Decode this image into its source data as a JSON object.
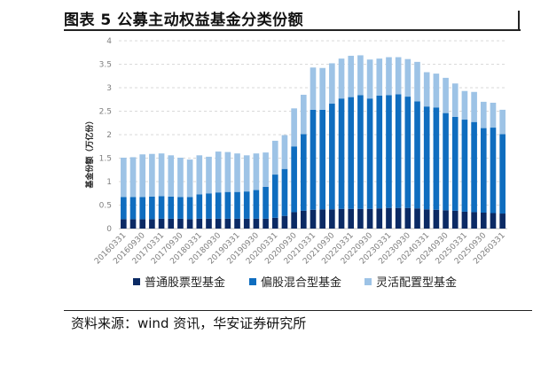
{
  "title": "图表 5 公募主动权益基金分类份额",
  "source": "资料来源：wind 资讯，华安证券研究所",
  "colors": {
    "s1": "#0b2a64",
    "s2": "#0f6dbf",
    "s3": "#9dc3e6",
    "grid": "#d9d9d9"
  },
  "chart_data": {
    "type": "bar",
    "stacked": true,
    "ylabel": "基金份额（万亿份）",
    "xlabel": "",
    "ylim": [
      0,
      4
    ],
    "yticks": [
      0,
      0.5,
      1,
      1.5,
      2,
      2.5,
      3,
      3.5,
      4
    ],
    "grid": true,
    "legend_position": "bottom",
    "categories": [
      "20160331",
      "20160630",
      "20160930",
      "20161231",
      "20170331",
      "20170630",
      "20170930",
      "20171231",
      "20180331",
      "20180630",
      "20180930",
      "20181231",
      "20190331",
      "20190630",
      "20190930",
      "20191231",
      "20200331",
      "20200630",
      "20200930",
      "20201231",
      "20210331",
      "20210630",
      "20210930",
      "20211231",
      "20220331",
      "20220630",
      "20220930",
      "20221231",
      "20230331",
      "20230630",
      "20230930",
      "20231231",
      "20240331",
      "20240630",
      "20240930",
      "20241231",
      "20250331",
      "20250630",
      "20250930",
      "20251231",
      "20260331"
    ],
    "series": [
      {
        "name": "普通股票型基金",
        "values": [
          0.2,
          0.2,
          0.2,
          0.2,
          0.21,
          0.21,
          0.21,
          0.2,
          0.21,
          0.21,
          0.21,
          0.21,
          0.21,
          0.21,
          0.21,
          0.21,
          0.23,
          0.27,
          0.35,
          0.38,
          0.4,
          0.41,
          0.41,
          0.42,
          0.42,
          0.42,
          0.42,
          0.43,
          0.44,
          0.44,
          0.44,
          0.43,
          0.41,
          0.4,
          0.39,
          0.38,
          0.36,
          0.35,
          0.34,
          0.33,
          0.32
        ]
      },
      {
        "name": "偏股混合型基金",
        "values": [
          0.47,
          0.47,
          0.47,
          0.48,
          0.48,
          0.47,
          0.46,
          0.47,
          0.52,
          0.54,
          0.56,
          0.57,
          0.57,
          0.58,
          0.61,
          0.68,
          0.92,
          1.0,
          1.4,
          1.63,
          2.13,
          2.12,
          2.25,
          2.35,
          2.38,
          2.42,
          2.35,
          2.4,
          2.4,
          2.42,
          2.37,
          2.28,
          2.19,
          2.18,
          2.07,
          2.0,
          1.96,
          1.92,
          1.8,
          1.82,
          1.69
        ]
      },
      {
        "name": "灵活配置型基金",
        "values": [
          0.84,
          0.85,
          0.91,
          0.91,
          0.91,
          0.88,
          0.84,
          0.8,
          0.83,
          0.78,
          0.87,
          0.85,
          0.82,
          0.77,
          0.78,
          0.73,
          0.72,
          0.72,
          0.81,
          0.84,
          0.9,
          0.89,
          0.86,
          0.85,
          0.88,
          0.85,
          0.83,
          0.79,
          0.81,
          0.79,
          0.8,
          0.84,
          0.73,
          0.72,
          0.75,
          0.71,
          0.61,
          0.64,
          0.56,
          0.53,
          0.52
        ]
      }
    ]
  }
}
